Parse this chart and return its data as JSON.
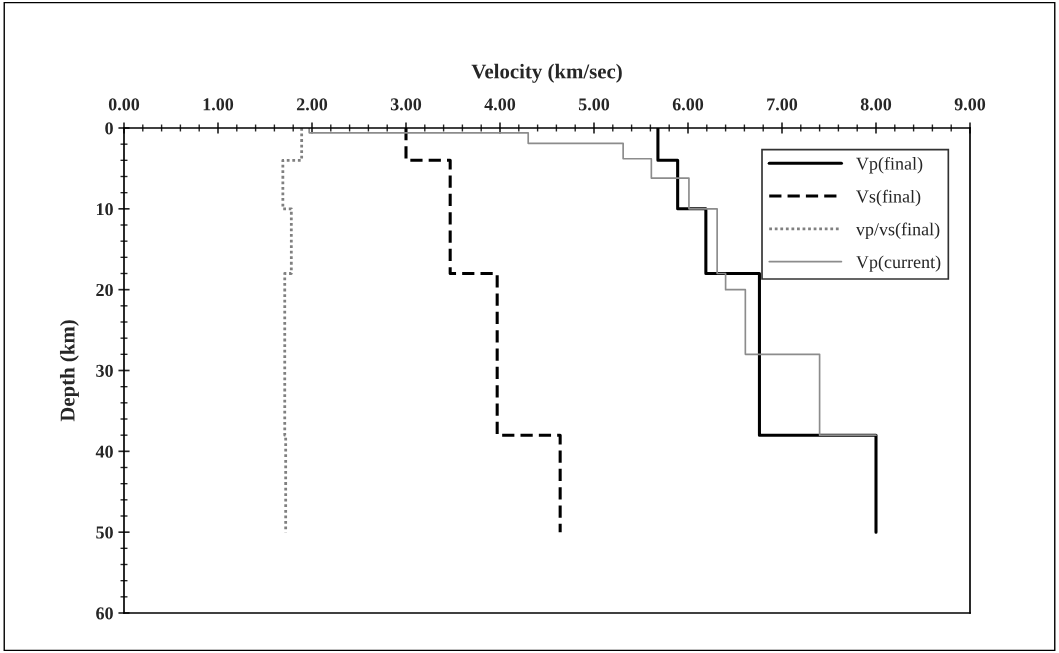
{
  "chart_data": {
    "type": "line",
    "xlabel": "Velocity (km/sec)",
    "ylabel": "Depth (km)",
    "xlim": [
      0,
      9
    ],
    "xticks": [
      {
        "value": 0,
        "label": "0.00"
      },
      {
        "value": 1,
        "label": "1.00"
      },
      {
        "value": 2,
        "label": "2.00"
      },
      {
        "value": 3,
        "label": "3.00"
      },
      {
        "value": 4,
        "label": "4.00"
      },
      {
        "value": 5,
        "label": "5.00"
      },
      {
        "value": 6,
        "label": "6.00"
      },
      {
        "value": 7,
        "label": "7.00"
      },
      {
        "value": 8,
        "label": "8.00"
      },
      {
        "value": 9,
        "label": "9.00"
      }
    ],
    "ylim": [
      60,
      0
    ],
    "yticks": [
      0,
      10,
      20,
      30,
      40,
      50,
      60
    ],
    "grid": false,
    "legend": "top right",
    "marker": "none",
    "series": [
      {
        "name": "Vp(final)",
        "color": "#000000",
        "line_style": "solid",
        "x": [
          5.68,
          5.68,
          5.89,
          5.89,
          6.19,
          6.19,
          6.76,
          6.76,
          8.0,
          8.0
        ],
        "values": [
          0,
          4,
          4,
          10,
          10,
          18,
          18,
          38,
          38,
          50
        ]
      },
      {
        "name": "Vs(final)",
        "color": "#000000",
        "line_style": "dashed",
        "x": [
          3.0,
          3.0,
          3.47,
          3.47,
          3.97,
          3.97,
          4.64,
          4.64
        ],
        "values": [
          0,
          4,
          4,
          18,
          18,
          38,
          38,
          50
        ]
      },
      {
        "name": "vp/vs(final)",
        "color": "#808080",
        "line_style": "dotted",
        "x": [
          1.89,
          1.89,
          1.69,
          1.69,
          1.78,
          1.78,
          1.71,
          1.71,
          1.72,
          1.72
        ],
        "values": [
          0,
          4,
          4,
          10,
          10,
          18,
          18,
          38,
          38,
          50
        ]
      },
      {
        "name": "Vp(current)",
        "color": "#8c8c8c",
        "line_style": "solid",
        "x": [
          1.97,
          1.97,
          4.3,
          4.3,
          5.31,
          5.31,
          5.61,
          5.61,
          6.01,
          6.01,
          6.31,
          6.31,
          6.4,
          6.4,
          6.61,
          6.61,
          7.4,
          7.4,
          8.0
        ],
        "values": [
          0,
          0.6,
          0.6,
          1.9,
          1.9,
          3.8,
          3.8,
          6.2,
          6.2,
          10,
          10,
          18,
          18,
          20,
          20,
          28,
          28,
          38,
          38
        ]
      }
    ]
  }
}
